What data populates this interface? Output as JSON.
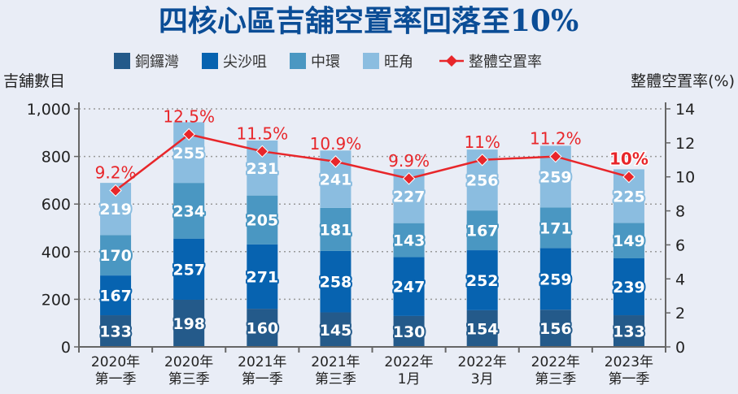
{
  "chart_data": {
    "type": "bar",
    "stacked": true,
    "title": "四核心區吉舖空置率回落至10%",
    "ylabel": "吉舖數目",
    "y2label": "整體空置率(%)",
    "ylim": [
      0,
      1000
    ],
    "y2lim": [
      0,
      14
    ],
    "yticks": [
      "0",
      "200",
      "400",
      "600",
      "800",
      "1,000"
    ],
    "y2ticks": [
      "0",
      "2",
      "4",
      "6",
      "8",
      "10",
      "12",
      "14"
    ],
    "grid": true,
    "legend": "top",
    "categories": [
      [
        "2020年",
        "第一季"
      ],
      [
        "2020年",
        "第三季"
      ],
      [
        "2021年",
        "第一季"
      ],
      [
        "2021年",
        "第三季"
      ],
      [
        "2022年",
        "1月"
      ],
      [
        "2022年",
        "3月"
      ],
      [
        "2022年",
        "第三季"
      ],
      [
        "2023年",
        "第一季"
      ]
    ],
    "series": [
      {
        "name": "銅鑼灣",
        "color": "#245a8a",
        "values": [
          133,
          198,
          160,
          145,
          130,
          154,
          156,
          133
        ]
      },
      {
        "name": "尖沙咀",
        "color": "#0763b0",
        "values": [
          167,
          257,
          271,
          258,
          247,
          252,
          259,
          239
        ]
      },
      {
        "name": "中環",
        "color": "#4a97c2",
        "values": [
          170,
          234,
          205,
          181,
          143,
          167,
          171,
          149
        ]
      },
      {
        "name": "旺角",
        "color": "#8bbde0",
        "values": [
          219,
          255,
          231,
          241,
          227,
          256,
          259,
          225
        ]
      }
    ],
    "line": {
      "name": "整體空置率",
      "color": "#e8262a",
      "axis": "right",
      "values": [
        9.2,
        12.5,
        11.5,
        10.9,
        9.9,
        11,
        11.2,
        10
      ],
      "labels": [
        "9.2%",
        "12.5%",
        "11.5%",
        "10.9%",
        "9.9%",
        "11%",
        "11.2%",
        "10%"
      ]
    }
  }
}
